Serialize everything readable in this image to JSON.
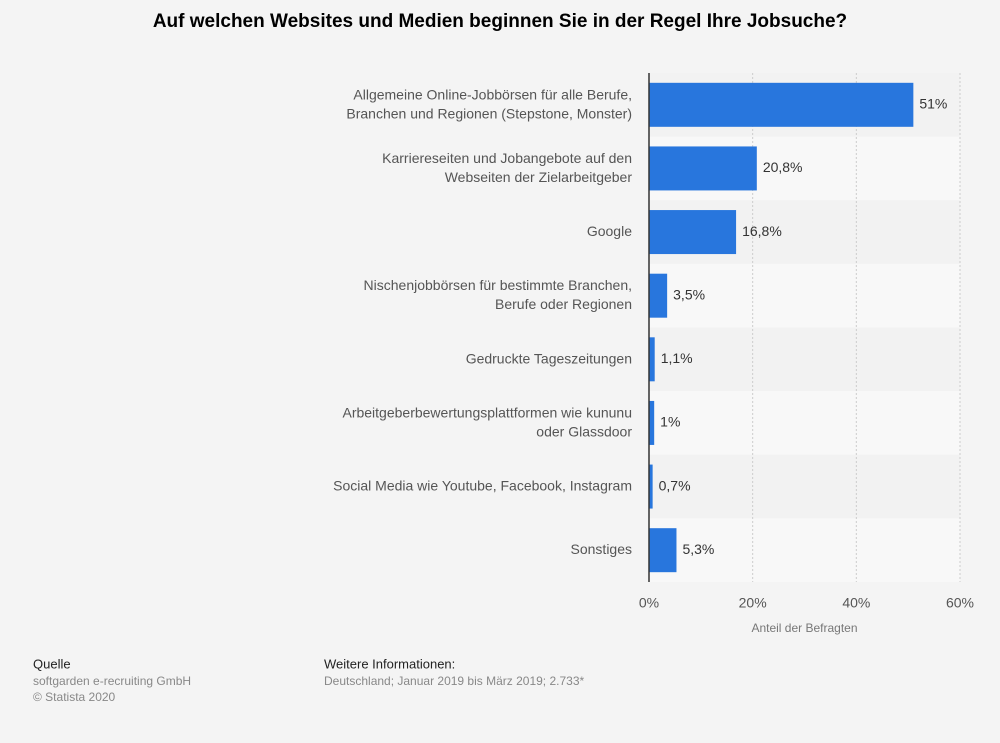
{
  "chart_data": {
    "type": "barh",
    "title": "Auf welchen Websites und Medien beginnen Sie in der Regel Ihre Jobsuche?",
    "categories": [
      [
        "Allgemeine Online-Jobbörsen für alle Berufe,",
        "Branchen und Regionen (Stepstone, Monster)"
      ],
      [
        "Karriereseiten und Jobangebote auf den",
        "Webseiten der Zielarbeitgeber"
      ],
      [
        "Google"
      ],
      [
        "Nischenjobbörsen für bestimmte Branchen,",
        "Berufe oder Regionen"
      ],
      [
        "Gedruckte Tageszeitungen"
      ],
      [
        "Arbeitgeberbewertungsplattformen wie kununu",
        "oder Glassdoor"
      ],
      [
        "Social Media wie Youtube, Facebook, Instagram"
      ],
      [
        "Sonstiges"
      ]
    ],
    "values": [
      51,
      20.8,
      16.8,
      3.5,
      1.1,
      1,
      0.7,
      5.3
    ],
    "value_labels": [
      "51%",
      "20,8%",
      "16,8%",
      "3,5%",
      "1,1%",
      "1%",
      "0,7%",
      "5,3%"
    ],
    "color": "#2876dd",
    "xlim": [
      0,
      60
    ],
    "xticks": [
      {
        "value": 0,
        "label": "0%"
      },
      {
        "value": 20,
        "label": "20%"
      },
      {
        "value": 40,
        "label": "40%"
      },
      {
        "value": 60,
        "label": "60%"
      }
    ],
    "x_label": "Anteil der Befragten",
    "grid": true
  },
  "footer": {
    "source_heading": "Quelle",
    "source": "softgarden e-recruiting GmbH",
    "copyright": "© Statista 2020",
    "info_heading": "Weitere Informationen:",
    "info": "Deutschland; Januar 2019 bis März 2019; 2.733*"
  }
}
